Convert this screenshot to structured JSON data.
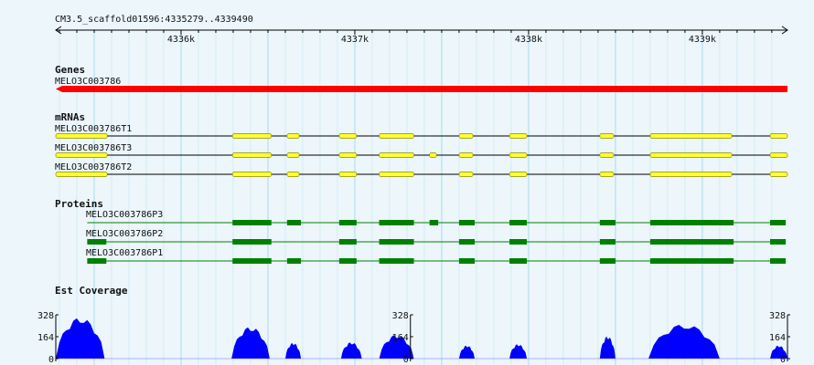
{
  "browser": {
    "location": "CM3.5_scaffold01596:4335279..4339490",
    "start": 4335279,
    "end": 4339490,
    "ticks": [
      {
        "pos": 4336000,
        "label": "4336k"
      },
      {
        "pos": 4337000,
        "label": "4337k"
      },
      {
        "pos": 4338000,
        "label": "4338k"
      },
      {
        "pos": 4339000,
        "label": "4339k"
      }
    ],
    "colors": {
      "background": "#ecf6fb",
      "grid": "#a4d8ec",
      "gene": "#ff0000",
      "exon": "#ffff33",
      "exon_border": "#8a8a00",
      "protein": "#008000",
      "coverage": "#0000ff"
    }
  },
  "tracks": {
    "genes": {
      "title": "Genes",
      "items": [
        {
          "name": "MELO3C003786",
          "start": 4335279,
          "end": 4339490,
          "strand": "-"
        }
      ]
    },
    "mrnas": {
      "title": "mRNAs",
      "items": [
        {
          "name": "MELO3C003786T1",
          "start": 4335279,
          "end": 4339490,
          "exons": [
            [
              4335279,
              4335575
            ],
            [
              4336296,
              4336520
            ],
            [
              4336610,
              4336680
            ],
            [
              4336910,
              4337010
            ],
            [
              4337140,
              4337340
            ],
            [
              4337600,
              4337680
            ],
            [
              4337890,
              4337990
            ],
            [
              4338410,
              4338490
            ],
            [
              4338700,
              4339170
            ],
            [
              4339390,
              4339490
            ]
          ]
        },
        {
          "name": "MELO3C003786T3",
          "start": 4335279,
          "end": 4339490,
          "exons": [
            [
              4335279,
              4335575
            ],
            [
              4336296,
              4336520
            ],
            [
              4336610,
              4336680
            ],
            [
              4336910,
              4337010
            ],
            [
              4337140,
              4337340
            ],
            [
              4337430,
              4337470
            ],
            [
              4337600,
              4337680
            ],
            [
              4337890,
              4337990
            ],
            [
              4338410,
              4338490
            ],
            [
              4338700,
              4339170
            ],
            [
              4339390,
              4339490
            ]
          ]
        },
        {
          "name": "MELO3C003786T2",
          "start": 4335279,
          "end": 4339490,
          "exons": [
            [
              4335279,
              4335575
            ],
            [
              4336296,
              4336520
            ],
            [
              4336610,
              4336680
            ],
            [
              4336910,
              4337010
            ],
            [
              4337140,
              4337340
            ],
            [
              4337600,
              4337680
            ],
            [
              4337890,
              4337990
            ],
            [
              4338410,
              4338490
            ],
            [
              4338700,
              4339170
            ],
            [
              4339390,
              4339490
            ]
          ]
        }
      ]
    },
    "proteins": {
      "title": "Proteins",
      "items": [
        {
          "name": "MELO3C003786P3",
          "start": 4335460,
          "end": 4339430,
          "cds": [
            [
              4336296,
              4336520
            ],
            [
              4336610,
              4336690
            ],
            [
              4336910,
              4337010
            ],
            [
              4337140,
              4337340
            ],
            [
              4337430,
              4337480
            ],
            [
              4337600,
              4337690
            ],
            [
              4337890,
              4337990
            ],
            [
              4338410,
              4338500
            ],
            [
              4338700,
              4339180
            ],
            [
              4339390,
              4339480
            ]
          ]
        },
        {
          "name": "MELO3C003786P2",
          "start": 4335460,
          "end": 4339430,
          "cds": [
            [
              4335460,
              4335570
            ],
            [
              4336296,
              4336520
            ],
            [
              4336910,
              4337010
            ],
            [
              4337140,
              4337340
            ],
            [
              4337600,
              4337690
            ],
            [
              4337890,
              4337990
            ],
            [
              4338410,
              4338500
            ],
            [
              4338700,
              4339180
            ],
            [
              4339390,
              4339480
            ]
          ]
        },
        {
          "name": "MELO3C003786P1",
          "start": 4335460,
          "end": 4339430,
          "cds": [
            [
              4335460,
              4335570
            ],
            [
              4336296,
              4336520
            ],
            [
              4336610,
              4336690
            ],
            [
              4336910,
              4337010
            ],
            [
              4337140,
              4337340
            ],
            [
              4337600,
              4337690
            ],
            [
              4337890,
              4337990
            ],
            [
              4338410,
              4338500
            ],
            [
              4338700,
              4339180
            ],
            [
              4339390,
              4339480
            ]
          ]
        }
      ]
    },
    "coverage": {
      "title": "Est Coverage",
      "max": 328,
      "scale_labels": [
        "328",
        "164",
        "0"
      ],
      "scale_positions": [
        4335279,
        4337320,
        4339490
      ],
      "peaks": [
        {
          "start": 4335279,
          "end": 4335560,
          "top": 310
        },
        {
          "start": 4336290,
          "end": 4336510,
          "top": 240
        },
        {
          "start": 4336600,
          "end": 4336690,
          "top": 120
        },
        {
          "start": 4336920,
          "end": 4337040,
          "top": 125
        },
        {
          "start": 4337140,
          "end": 4337340,
          "top": 180
        },
        {
          "start": 4337600,
          "end": 4337690,
          "top": 100
        },
        {
          "start": 4337890,
          "end": 4337990,
          "top": 110
        },
        {
          "start": 4338410,
          "end": 4338500,
          "top": 170
        },
        {
          "start": 4338690,
          "end": 4339100,
          "top": 260
        },
        {
          "start": 4339390,
          "end": 4339490,
          "top": 100
        }
      ]
    }
  }
}
